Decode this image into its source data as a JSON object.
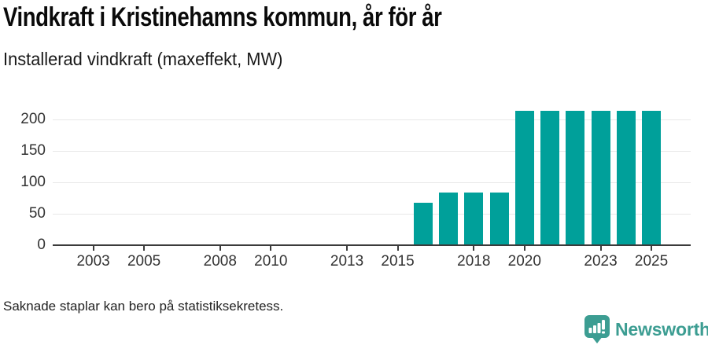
{
  "header": {
    "title": "Vindkraft i Kristinehamns kommun, år för år",
    "subtitle": "Installerad vindkraft (maxeffekt, MW)"
  },
  "footer": {
    "note": "Saknade staplar kan bero på statistiksekretess.",
    "brand": "Newsworthy"
  },
  "colors": {
    "bar": "#00a09a",
    "brand_teal": "#3c9d92",
    "grid": "#e7e7e7",
    "axis": "#3b3b3b",
    "tick_text": "#333333"
  },
  "chart_data": {
    "type": "bar",
    "title": "Vindkraft i Kristinehamns kommun, år för år",
    "subtitle": "Installerad vindkraft (maxeffekt, MW)",
    "xlabel": "",
    "ylabel": "Installerad vindkraft (maxeffekt, MW)",
    "unit": "MW",
    "grid": true,
    "legend": false,
    "x_range": [
      2001.4,
      2026.55
    ],
    "ylim": [
      0,
      230
    ],
    "x_ticks": [
      2003,
      2005,
      2008,
      2010,
      2013,
      2015,
      2018,
      2020,
      2023,
      2025
    ],
    "y_ticks": [
      0,
      50,
      100,
      150,
      200
    ],
    "bars": [
      {
        "year": 2016,
        "value": 66
      },
      {
        "year": 2017,
        "value": 82
      },
      {
        "year": 2018,
        "value": 82
      },
      {
        "year": 2019,
        "value": 82
      },
      {
        "year": 2020,
        "value": 213
      },
      {
        "year": 2021,
        "value": 213
      },
      {
        "year": 2022,
        "value": 213
      },
      {
        "year": 2023,
        "value": 213
      },
      {
        "year": 2024,
        "value": 213
      },
      {
        "year": 2025,
        "value": 213
      }
    ],
    "note": "Saknade staplar kan bero på statistiksekretess."
  }
}
